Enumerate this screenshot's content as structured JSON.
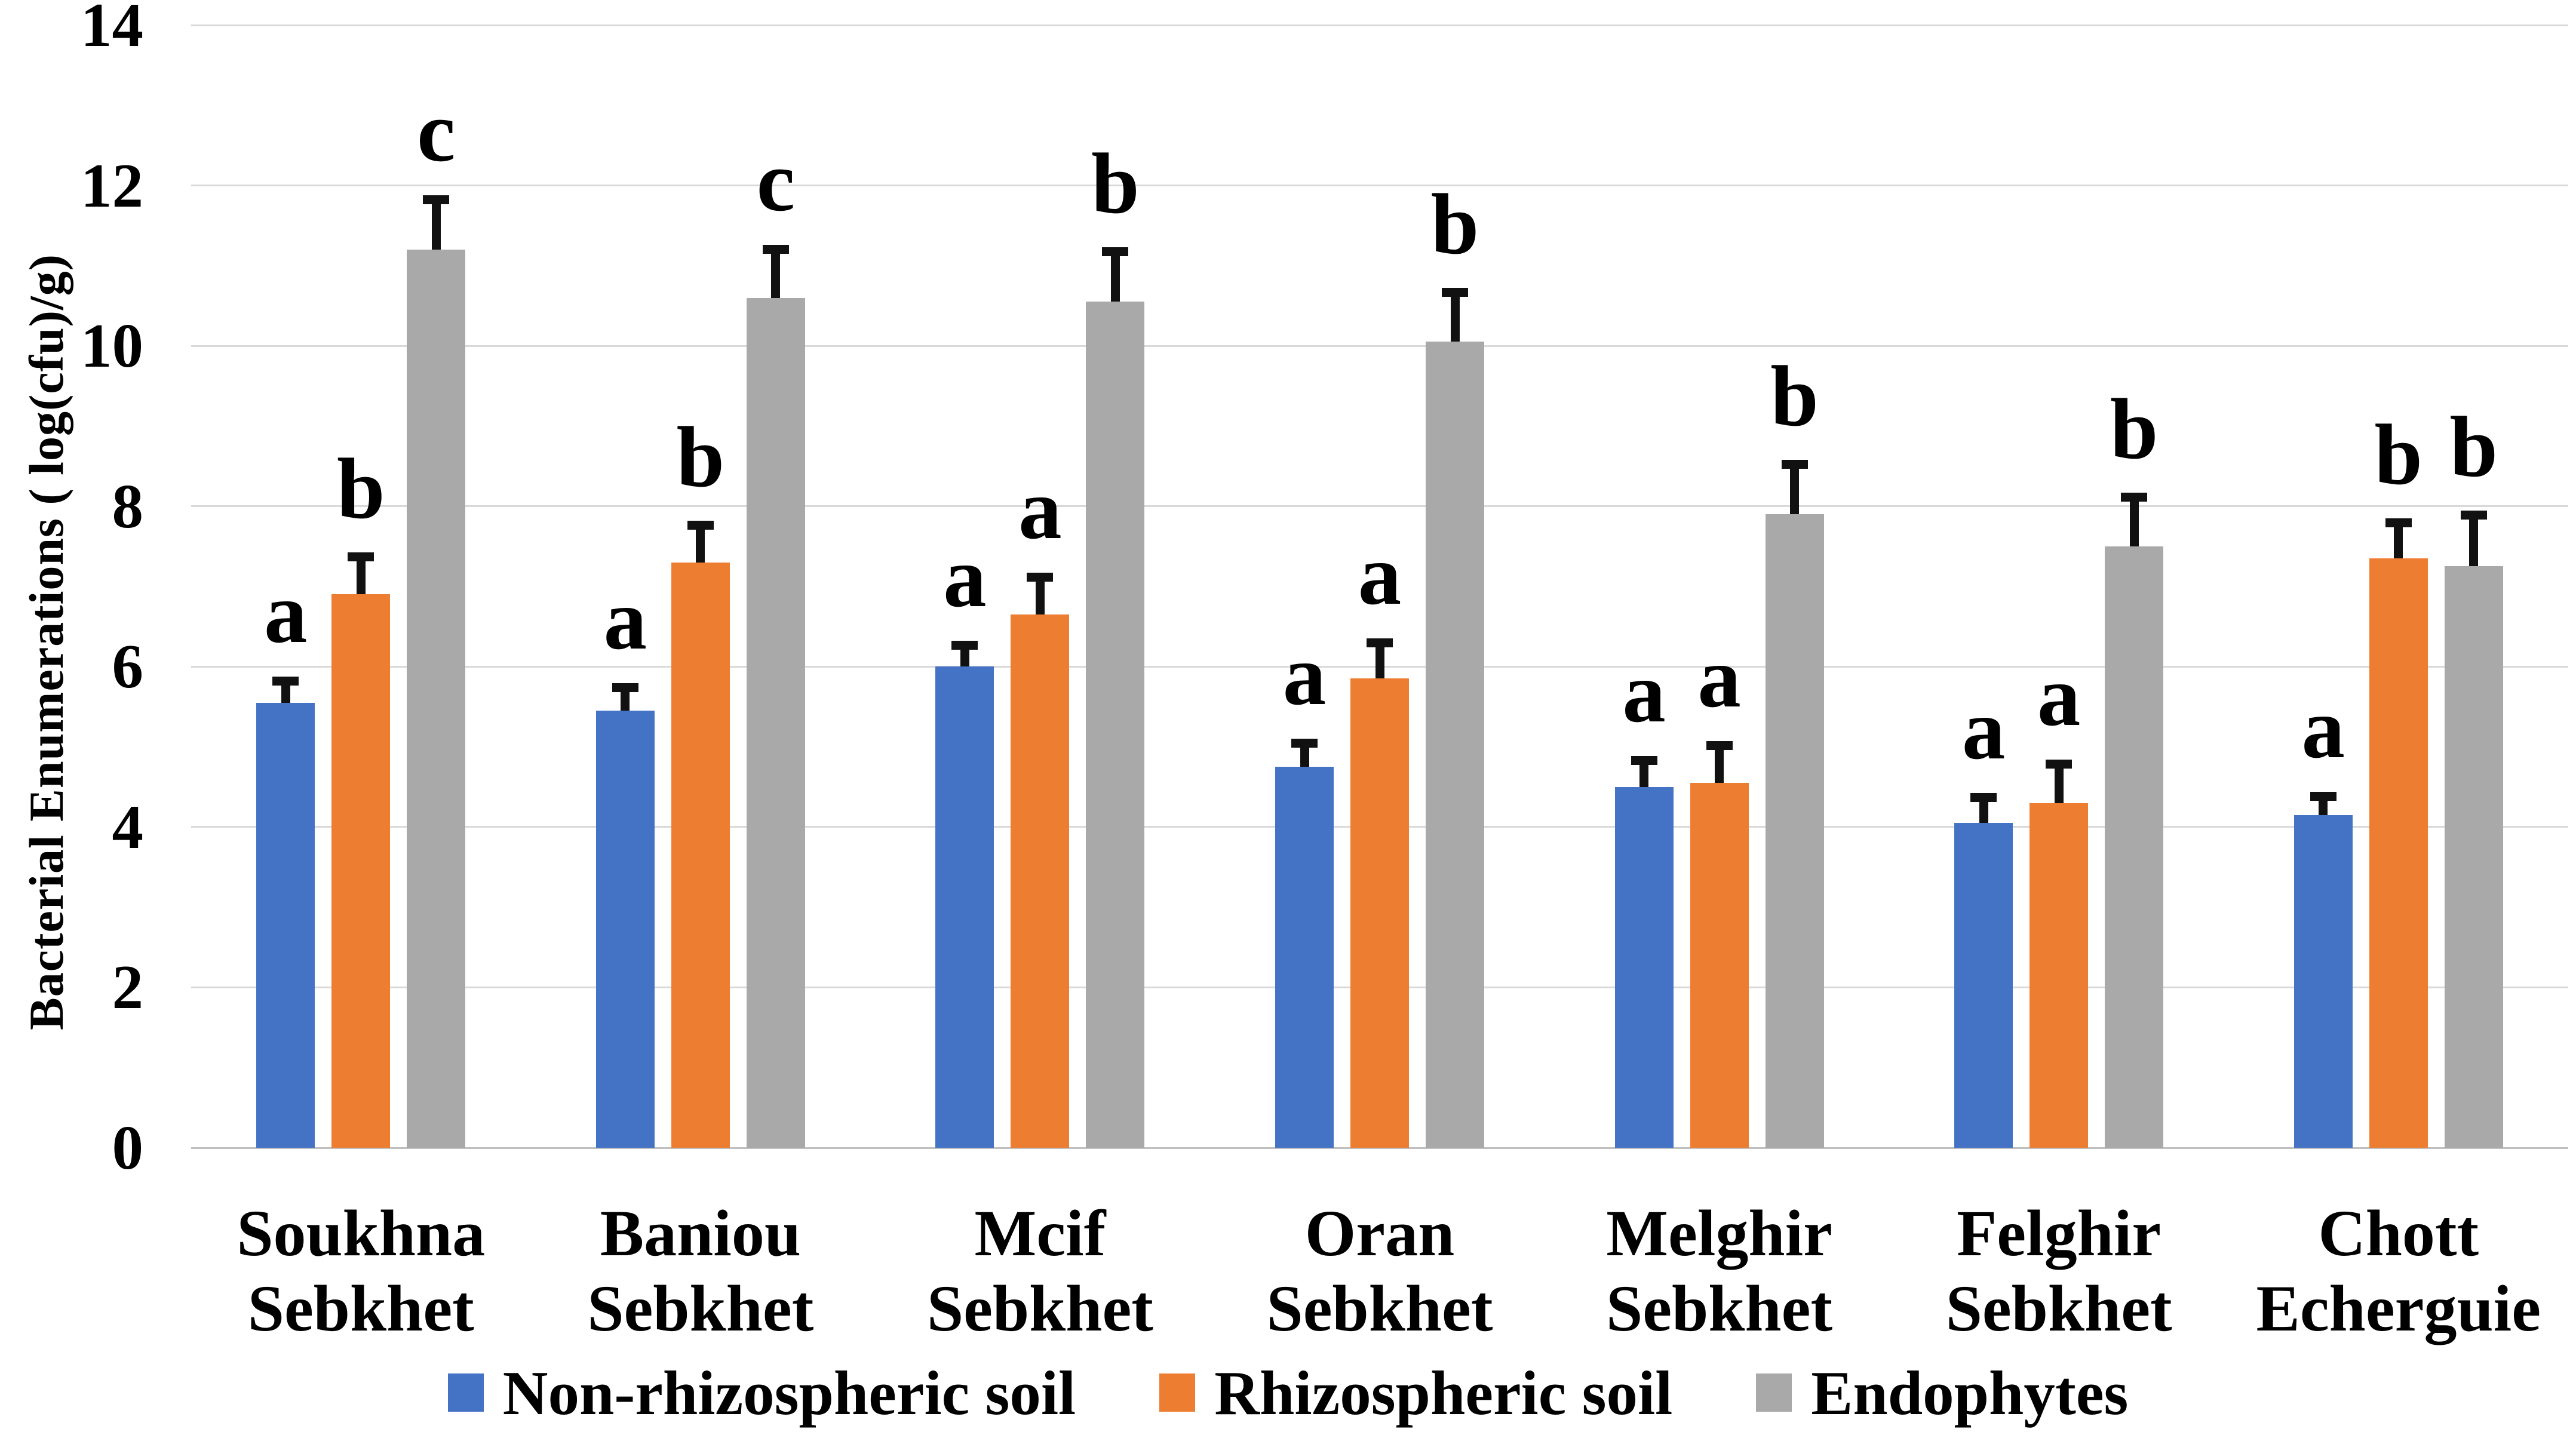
{
  "chart_data": {
    "type": "bar",
    "title": "",
    "ylabel": "Bacterial Enumerations ( log(cfu)/g)",
    "xlabel": "",
    "ylim": [
      0,
      14
    ],
    "yticks": [
      0,
      2,
      4,
      6,
      8,
      10,
      12,
      14
    ],
    "grid": true,
    "legend_position": "bottom",
    "categories": [
      "Soukhna Sebkhet",
      "Baniou Sebkhet",
      "Mcif Sebkhet",
      "Oran Sebkhet",
      "Melghir Sebkhet",
      "Felghir Sebkhet",
      "Chott Echerguie"
    ],
    "category_lines": [
      [
        "Soukhna",
        "Sebkhet"
      ],
      [
        "Baniou",
        "Sebkhet"
      ],
      [
        "Mcif",
        "Sebkhet"
      ],
      [
        "Oran",
        "Sebkhet"
      ],
      [
        "Melghir",
        "Sebkhet"
      ],
      [
        "Felghir",
        "Sebkhet"
      ],
      [
        "Chott",
        "Echerguie"
      ]
    ],
    "series": [
      {
        "name": "Non-rhizospheric soil",
        "color": "#4472C4",
        "values": [
          5.55,
          5.45,
          6.0,
          4.75,
          4.5,
          4.05,
          4.15
        ],
        "errors": [
          0.33,
          0.34,
          0.32,
          0.35,
          0.39,
          0.37,
          0.29
        ],
        "letters": [
          "a",
          "a",
          "a",
          "a",
          "a",
          "a",
          "a"
        ]
      },
      {
        "name": "Rhizospheric soil",
        "color": "#ED7D31",
        "values": [
          6.9,
          7.3,
          6.65,
          5.85,
          4.55,
          4.3,
          7.35
        ],
        "errors": [
          0.52,
          0.52,
          0.52,
          0.5,
          0.52,
          0.54,
          0.5
        ],
        "letters": [
          "b",
          "b",
          "a",
          "a",
          "a",
          "a",
          "b"
        ]
      },
      {
        "name": "Endophytes",
        "color": "#A9A9A9",
        "values": [
          11.2,
          10.6,
          10.55,
          10.05,
          7.9,
          7.5,
          7.25
        ],
        "errors": [
          0.68,
          0.66,
          0.68,
          0.67,
          0.68,
          0.67,
          0.69
        ],
        "letters": [
          "c",
          "c",
          "b",
          "b",
          "b",
          "b",
          "b"
        ]
      }
    ],
    "colors": {
      "gridline": "#D9D9D9",
      "axis_line": "#C0C0C0",
      "error_bar": "#111111",
      "text": "#000000",
      "background": "#FFFFFF"
    }
  }
}
